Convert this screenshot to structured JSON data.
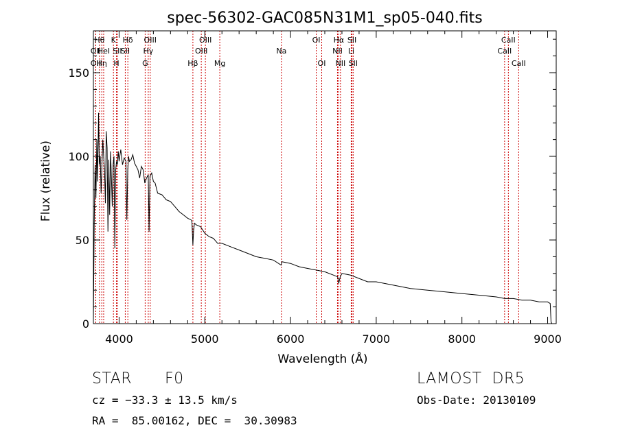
{
  "chart_data": {
    "type": "line",
    "title": "spec-56302-GAC085N31M1_sp05-040.fits",
    "xlabel": "Wavelength (Å)",
    "ylabel": "Flux (relative)",
    "xlim": [
      3700,
      9100
    ],
    "ylim": [
      0,
      175
    ],
    "xticks": [
      4000,
      5000,
      6000,
      7000,
      8000,
      9000
    ],
    "yticks": [
      0,
      50,
      100,
      150
    ],
    "grid": false,
    "series": [
      {
        "x": [
          3700,
          3710,
          3720,
          3730,
          3740,
          3750,
          3760,
          3770,
          3780,
          3790,
          3800,
          3810,
          3820,
          3830,
          3840,
          3850,
          3860,
          3870,
          3880,
          3890,
          3900,
          3910,
          3920,
          3930,
          3940,
          3950,
          3960,
          3970,
          3980,
          3990,
          4000,
          4020,
          4040,
          4060,
          4080,
          4090,
          4101,
          4110,
          4120,
          4140,
          4160,
          4180,
          4200,
          4220,
          4240,
          4260,
          4280,
          4300,
          4320,
          4340,
          4350,
          4360,
          4380,
          4400,
          4420,
          4450,
          4500,
          4550,
          4600,
          4650,
          4700,
          4750,
          4800,
          4840,
          4850,
          4861,
          4870,
          4880,
          4900,
          4950,
          5000,
          5050,
          5100,
          5150,
          5200,
          5300,
          5400,
          5500,
          5600,
          5700,
          5800,
          5890,
          5900,
          6000,
          6100,
          6200,
          6300,
          6400,
          6500,
          6550,
          6563,
          6580,
          6600,
          6700,
          6800,
          6900,
          7000,
          7200,
          7400,
          7600,
          7800,
          8000,
          8200,
          8400,
          8500,
          8600,
          8700,
          8800,
          8900,
          9000,
          9030,
          9040,
          9050
        ],
        "y": [
          2,
          60,
          95,
          75,
          110,
          85,
          126,
          95,
          100,
          78,
          95,
          110,
          100,
          92,
          72,
          115,
          105,
          55,
          98,
          65,
          103,
          88,
          70,
          95,
          100,
          45,
          92,
          97,
          95,
          103,
          97,
          104,
          95,
          99,
          97,
          62,
          92,
          100,
          97,
          98,
          101,
          96,
          94,
          92,
          87,
          94,
          92,
          84,
          87,
          89,
          55,
          88,
          90,
          85,
          84,
          78,
          77,
          74,
          73,
          70,
          67,
          65,
          63,
          62,
          61,
          47,
          56,
          60,
          59,
          58,
          54,
          52,
          51,
          48,
          48,
          46,
          44,
          42,
          40,
          39,
          38,
          35,
          37,
          36,
          34,
          33,
          32,
          31,
          29,
          28,
          24,
          28,
          30,
          29,
          27,
          25,
          25,
          23,
          21,
          20,
          19,
          18,
          17,
          16,
          15,
          15,
          14,
          14,
          13,
          13,
          12,
          1,
          0
        ]
      }
    ],
    "lines": [
      {
        "name": "OII",
        "x": 3727,
        "row": 3
      },
      {
        "name": "OII",
        "x": 3727,
        "row": 2
      },
      {
        "name": "Hθ",
        "x": 3771,
        "row": 1
      },
      {
        "name": "Hη",
        "x": 3798,
        "row": 3
      },
      {
        "name": "HeI",
        "x": 3820,
        "row": 2
      },
      {
        "name": "K",
        "x": 3934,
        "row": 1
      },
      {
        "name": "SII",
        "x": 3980,
        "row": 2
      },
      {
        "name": "H",
        "x": 3969,
        "row": 3
      },
      {
        "name": "Hδ",
        "x": 4102,
        "row": 1
      },
      {
        "name": "SII",
        "x": 4072,
        "row": 2
      },
      {
        "name": "OIII",
        "x": 4363,
        "row": 1
      },
      {
        "name": "Hγ",
        "x": 4340,
        "row": 2
      },
      {
        "name": "G",
        "x": 4304,
        "row": 3
      },
      {
        "name": "Hβ",
        "x": 4861,
        "row": 3
      },
      {
        "name": "OIII",
        "x": 5007,
        "row": 1
      },
      {
        "name": "OIII",
        "x": 4959,
        "row": 2
      },
      {
        "name": "Mg",
        "x": 5175,
        "row": 3
      },
      {
        "name": "Na",
        "x": 5894,
        "row": 2
      },
      {
        "name": "OI",
        "x": 6300,
        "row": 1
      },
      {
        "name": "OI",
        "x": 6364,
        "row": 3
      },
      {
        "name": "Hα",
        "x": 6563,
        "row": 1
      },
      {
        "name": "NII",
        "x": 6548,
        "row": 2
      },
      {
        "name": "NII",
        "x": 6583,
        "row": 3
      },
      {
        "name": "SII",
        "x": 6717,
        "row": 1
      },
      {
        "name": "Li",
        "x": 6708,
        "row": 2
      },
      {
        "name": "SII",
        "x": 6731,
        "row": 3
      },
      {
        "name": "CaII",
        "x": 8542,
        "row": 1
      },
      {
        "name": "CaII",
        "x": 8498,
        "row": 2
      },
      {
        "name": "CaII",
        "x": 8662,
        "row": 3
      }
    ],
    "line_color": "#cc0000"
  },
  "info": {
    "class_label": "STAR",
    "subclass": "F0",
    "survey": "LAMOST  DR5",
    "cz": "cz = −33.3 ± 13.5 km/s",
    "obs_date": "Obs-Date: 20130109",
    "coords": "RA =  85.00162, DEC =  30.30983"
  }
}
